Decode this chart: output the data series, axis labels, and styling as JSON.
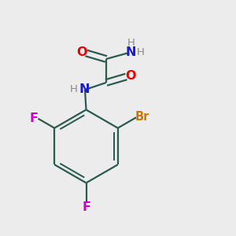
{
  "background_color": "#ececec",
  "bond_color": "#2a5a50",
  "line_width": 1.6,
  "atom_colors": {
    "O": "#ee0000",
    "N": "#1a1acc",
    "H": "#888888",
    "Br": "#cc7700",
    "F_left": "#cc00cc",
    "F_bottom": "#cc00cc"
  }
}
